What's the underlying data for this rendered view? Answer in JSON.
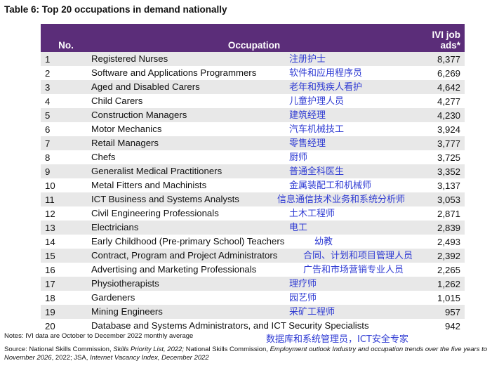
{
  "title": "Table 6: Top 20 occupations in demand nationally",
  "headers": {
    "no": "No.",
    "occupation": "Occupation",
    "ads_line1": "IVI job",
    "ads_line2": "ads*"
  },
  "rows": [
    {
      "no": "1",
      "occupation": "Registered Nurses",
      "zh": "注册护士",
      "ads": "8,377"
    },
    {
      "no": "2",
      "occupation": "Software and Applications Programmers",
      "zh": "软件和应用程序员",
      "ads": "6,269"
    },
    {
      "no": "3",
      "occupation": "Aged and Disabled Carers",
      "zh": "老年和残疾人看护",
      "ads": "4,642"
    },
    {
      "no": "4",
      "occupation": "Child Carers",
      "zh": "儿童护理人员",
      "ads": "4,277"
    },
    {
      "no": "5",
      "occupation": "Construction Managers",
      "zh": "建筑经理",
      "ads": "4,230"
    },
    {
      "no": "6",
      "occupation": "Motor Mechanics",
      "zh": "汽车机械技工",
      "ads": "3,924"
    },
    {
      "no": "7",
      "occupation": "Retail Managers",
      "zh": "零售经理",
      "ads": "3,777"
    },
    {
      "no": "8",
      "occupation": "Chefs",
      "zh": "厨师",
      "ads": "3,725"
    },
    {
      "no": "9",
      "occupation": "Generalist Medical Practitioners",
      "zh": "普通全科医生",
      "ads": "3,352"
    },
    {
      "no": "10",
      "occupation": "Metal Fitters and Machinists",
      "zh": "金属装配工和机械师",
      "ads": "3,137"
    },
    {
      "no": "11",
      "occupation": "ICT Business and Systems Analysts",
      "zh": "信息通信技术业务和系统分析师",
      "ads": "3,053"
    },
    {
      "no": "12",
      "occupation": "Civil Engineering Professionals",
      "zh": "土木工程师",
      "ads": "2,871"
    },
    {
      "no": "13",
      "occupation": "Electricians",
      "zh": "电工",
      "ads": "2,839"
    },
    {
      "no": "14",
      "occupation": "Early Childhood (Pre-primary School) Teachers",
      "zh": "幼教",
      "ads": "2,493"
    },
    {
      "no": "15",
      "occupation": "Contract, Program and Project Administrators",
      "zh": "合同、计划和项目管理人员",
      "ads": "2,392"
    },
    {
      "no": "16",
      "occupation": "Advertising and Marketing Professionals",
      "zh": "广告和市场营销专业人员",
      "ads": "2,265"
    },
    {
      "no": "17",
      "occupation": "Physiotherapists",
      "zh": "理疗师",
      "ads": "1,262"
    },
    {
      "no": "18",
      "occupation": "Gardeners",
      "zh": "园艺师",
      "ads": "1,015"
    },
    {
      "no": "19",
      "occupation": "Mining Engineers",
      "zh": "采矿工程师",
      "ads": "957"
    },
    {
      "no": "20",
      "occupation": "Database and Systems Administrators, and ICT Security Specialists",
      "zh": "数据库和系统管理员，ICT安全专家",
      "ads": "942"
    }
  ],
  "notes": "Notes: IVI data are October to December 2022 monthly average",
  "source": {
    "prefix": "Source: National Skills Commission, ",
    "spl": "Skills Priority List, 2022;",
    "mid": " National Skills Commission, ",
    "eo": "Employment outlook Industry and occupation trends over the five years to November 2026",
    "mid2": ", 2022; JSA, ",
    "ivi": "Internet Vacancy Index, December 2022"
  }
}
